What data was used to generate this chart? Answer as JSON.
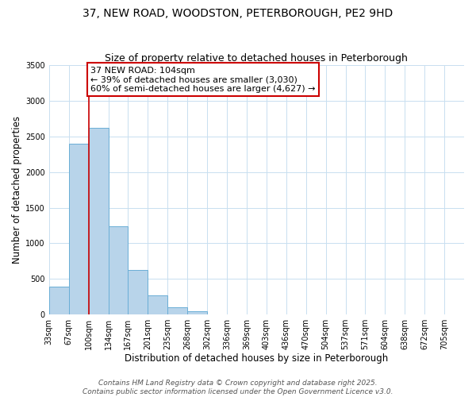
{
  "title": "37, NEW ROAD, WOODSTON, PETERBOROUGH, PE2 9HD",
  "subtitle": "Size of property relative to detached houses in Peterborough",
  "xlabel": "Distribution of detached houses by size in Peterborough",
  "ylabel": "Number of detached properties",
  "bar_color": "#b8d4ea",
  "bar_edge_color": "#6aaed6",
  "background_color": "#ffffff",
  "grid_color": "#c8dff0",
  "categories": [
    "33sqm",
    "67sqm",
    "100sqm",
    "134sqm",
    "167sqm",
    "201sqm",
    "235sqm",
    "268sqm",
    "302sqm",
    "336sqm",
    "369sqm",
    "403sqm",
    "436sqm",
    "470sqm",
    "504sqm",
    "537sqm",
    "571sqm",
    "604sqm",
    "638sqm",
    "672sqm",
    "705sqm"
  ],
  "values": [
    390,
    2400,
    2620,
    1240,
    620,
    270,
    100,
    50,
    0,
    0,
    0,
    0,
    0,
    0,
    0,
    0,
    0,
    0,
    0,
    0,
    0
  ],
  "ylim": [
    0,
    3500
  ],
  "yticks": [
    0,
    500,
    1000,
    1500,
    2000,
    2500,
    3000,
    3500
  ],
  "marker_label": "37 NEW ROAD: 104sqm",
  "annotation_line1": "← 39% of detached houses are smaller (3,030)",
  "annotation_line2": "60% of semi-detached houses are larger (4,627) →",
  "annotation_box_color": "#ffffff",
  "annotation_box_edge_color": "#cc0000",
  "marker_line_color": "#cc0000",
  "footer_line1": "Contains HM Land Registry data © Crown copyright and database right 2025.",
  "footer_line2": "Contains public sector information licensed under the Open Government Licence v3.0.",
  "title_fontsize": 10,
  "subtitle_fontsize": 9,
  "axis_label_fontsize": 8.5,
  "tick_fontsize": 7,
  "annotation_fontsize": 8,
  "footer_fontsize": 6.5
}
